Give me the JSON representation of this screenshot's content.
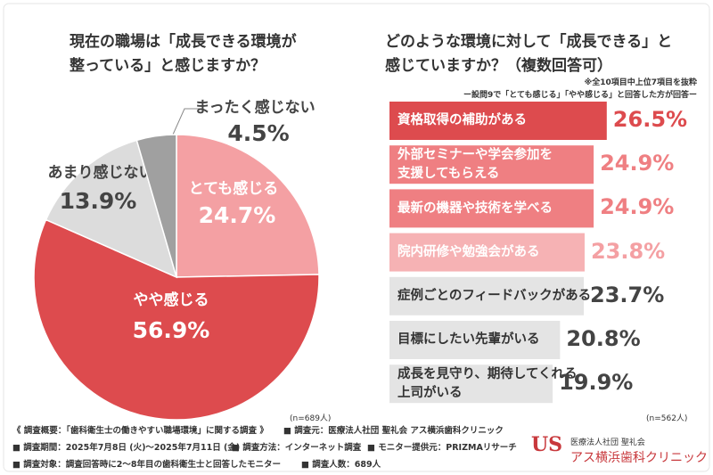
{
  "chart_data": [
    {
      "type": "pie",
      "title": "現在の職場は「成長できる環境が\n整っている」と感じますか？",
      "note": "(n=689人)",
      "categories": [
        "とても感じる",
        "やや感じる",
        "あまり感じない",
        "まったく感じない"
      ],
      "values": [
        24.7,
        56.9,
        13.9,
        4.5
      ],
      "value_labels": [
        "24.7%",
        "56.9%",
        "13.9%",
        "4.5%"
      ],
      "colors": [
        "#f4a0a3",
        "#dd4b4e",
        "#dcdcdc",
        "#a0a0a0"
      ]
    },
    {
      "type": "hbar",
      "title": "どのような環境に対して「成長できる」と\n感じていますか？（複数回答可）",
      "subnotes": [
        "※全10項目中上位7項目を抜粋",
        "ー設問9で「とても感じる」「やや感じる」と回答した方が回答ー"
      ],
      "note": "(n=562人)",
      "categories": [
        "資格取得の補助がある",
        "外部セミナーや学会参加を\n支援してもらえる",
        "最新の機器や技術を学べる",
        "院内研修や勉強会がある",
        "症例ごとのフィードバックがある",
        "目標にしたい先輩がいる",
        "成長を見守り、期待してくれる\n上司がいる"
      ],
      "values": [
        26.5,
        24.9,
        24.9,
        23.8,
        23.7,
        20.8,
        19.9
      ],
      "value_labels": [
        "26.5%",
        "24.9%",
        "24.9%",
        "23.8%",
        "23.7%",
        "20.8%",
        "19.9%"
      ],
      "colors": [
        "#dd4b4e",
        "#ef7f82",
        "#ef7f82",
        "#f6b2b4",
        "#e4e4e4",
        "#e4e4e4",
        "#e4e4e4"
      ],
      "label_colors": [
        "#dd4b4e",
        "#ef7f82",
        "#ef7f82",
        "#f4a0a3",
        "#444444",
        "#444444",
        "#444444"
      ]
    }
  ],
  "footer": {
    "lines": [
      [
        "《 調査概要：「歯科衛生士の働きやすい職場環境」に関する調査 》",
        "■ 調査元：医療法人社団 聖礼会 アス横浜歯科クリニック"
      ],
      [
        "■ 調査期間：2025年7月8日 (火)〜2025年7月11日 (金)",
        "■ 調査方法：インターネット調査",
        "■ モニター提供元：PRIZMAリサーチ"
      ],
      [
        "■ 調査対象：調査回答時に2〜8年目の歯科衛生士と回答したモニター",
        "■ 調査人数：689人"
      ]
    ]
  },
  "logo": {
    "mark": "US",
    "org": "医療法人社団 聖礼会",
    "name": "アス横浜歯科クリニック"
  }
}
